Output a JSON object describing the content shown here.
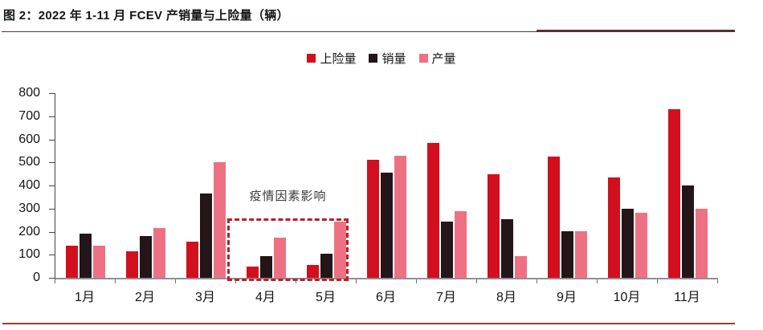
{
  "title": "图 2：2022 年 1-11 月 FCEV 产销量与上险量（辆）",
  "legend": {
    "items": [
      {
        "label": "上险量",
        "color": "#d20f1e"
      },
      {
        "label": "销量",
        "color": "#231518"
      },
      {
        "label": "产量",
        "color": "#ee7183"
      }
    ]
  },
  "annotation": {
    "text": "疫情因素影响",
    "box_color": "#b3232e",
    "highlight_categories": [
      "4月",
      "5月"
    ]
  },
  "chart_data": {
    "type": "bar",
    "title": "2022 年 1-11 月 FCEV 产销量与上险量（辆）",
    "xlabel": "",
    "ylabel": "",
    "categories": [
      "1月",
      "2月",
      "3月",
      "4月",
      "5月",
      "6月",
      "7月",
      "8月",
      "9月",
      "10月",
      "11月"
    ],
    "series": [
      {
        "name": "上险量",
        "color": "#d20f1e",
        "values": [
          140,
          115,
          155,
          50,
          55,
          510,
          585,
          450,
          525,
          435,
          730
        ]
      },
      {
        "name": "销量",
        "color": "#231518",
        "values": [
          190,
          180,
          365,
          95,
          105,
          455,
          245,
          255,
          200,
          300,
          400
        ]
      },
      {
        "name": "产量",
        "color": "#ee7183",
        "values": [
          140,
          215,
          500,
          175,
          245,
          530,
          290,
          95,
          200,
          280,
          300
        ]
      }
    ],
    "ylim": [
      0,
      800
    ],
    "y_ticks": [
      0,
      100,
      200,
      300,
      400,
      500,
      600,
      700,
      800
    ],
    "grid": false,
    "legend_position": "top",
    "annotations": [
      {
        "text": "疫情因素影响",
        "applies_to": [
          "4月",
          "5月"
        ]
      }
    ]
  }
}
